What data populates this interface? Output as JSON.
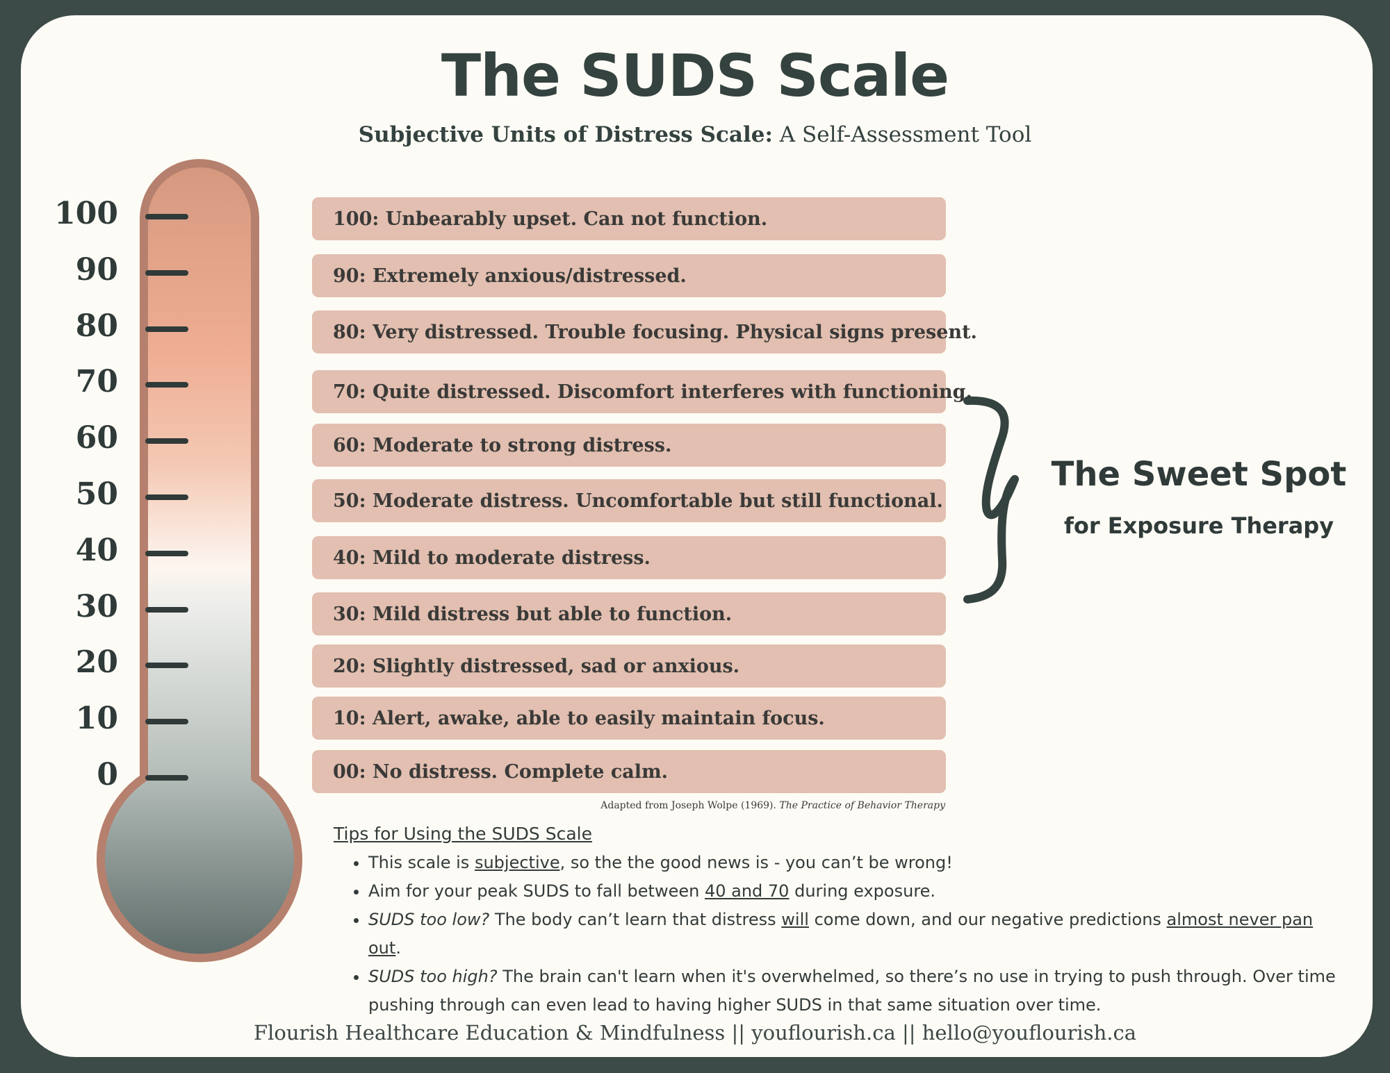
{
  "header": {
    "title": "The SUDS Scale",
    "subtitle_bold": "Subjective Units of Distress Scale:",
    "subtitle_rest": " A Self-Assessment Tool"
  },
  "thermometer": {
    "tick_labels": [
      "100",
      "90",
      "80",
      "70",
      "60",
      "50",
      "40",
      "30",
      "20",
      "10",
      "0"
    ]
  },
  "levels": [
    "100: Unbearably upset. Can not function.",
    "90: Extremely anxious/distressed.",
    "80: Very distressed. Trouble focusing. Physical signs present.",
    "70: Quite distressed. Discomfort interferes with functioning.",
    "60: Moderate to strong distress.",
    "50: Moderate distress. Uncomfortable but still functional.",
    "40: Mild to moderate distress.",
    "30: Mild distress but able to function.",
    "20: Slightly distressed, sad or anxious.",
    "10: Alert, awake, able to easily maintain focus.",
    "00: No distress. Complete calm."
  ],
  "sweet_spot": {
    "title": "The Sweet Spot",
    "subtitle": "for Exposure Therapy"
  },
  "attribution": {
    "text": "Adapted from Joseph Wolpe (1969). ",
    "book": "The Practice of Behavior Therapy"
  },
  "tips": {
    "heading": "Tips for Using the SUDS Scale",
    "tip1": {
      "a": "This scale is ",
      "u": "subjective",
      "b": ", so the the good news is - you can’t be wrong!"
    },
    "tip2": {
      "a": "Aim for your peak SUDS to fall between ",
      "u": "40 and 70",
      "b": " during exposure."
    },
    "tip3": {
      "i": "SUDS too low?",
      "a": " The body can’t learn that distress ",
      "u1": "will",
      "b": " come down, and our negative predictions ",
      "u2": "almost never pan out",
      "c": "."
    },
    "tip4": {
      "i": "SUDS too high?",
      "a": "  The brain can't learn when it's overwhelmed, so there’s no use in trying to push through. Over time pushing through can even lead to having higher SUDS in that same situation over time."
    }
  },
  "footer": {
    "text": "Flourish Healthcare Education & Mindfulness || youflourish.ca || hello@youflourish.ca"
  },
  "colors": {
    "background": "#3c4a48",
    "card": "#fdfbf5",
    "row": "#e2bfb0",
    "thermometer_outline": "#b5806d",
    "thermometer_top": "#d6997f",
    "thermometer_mid": "#efae94",
    "thermometer_light": "#fdf6f0",
    "thermometer_bulb": "#5a6966",
    "tick": "#2f3a39"
  }
}
